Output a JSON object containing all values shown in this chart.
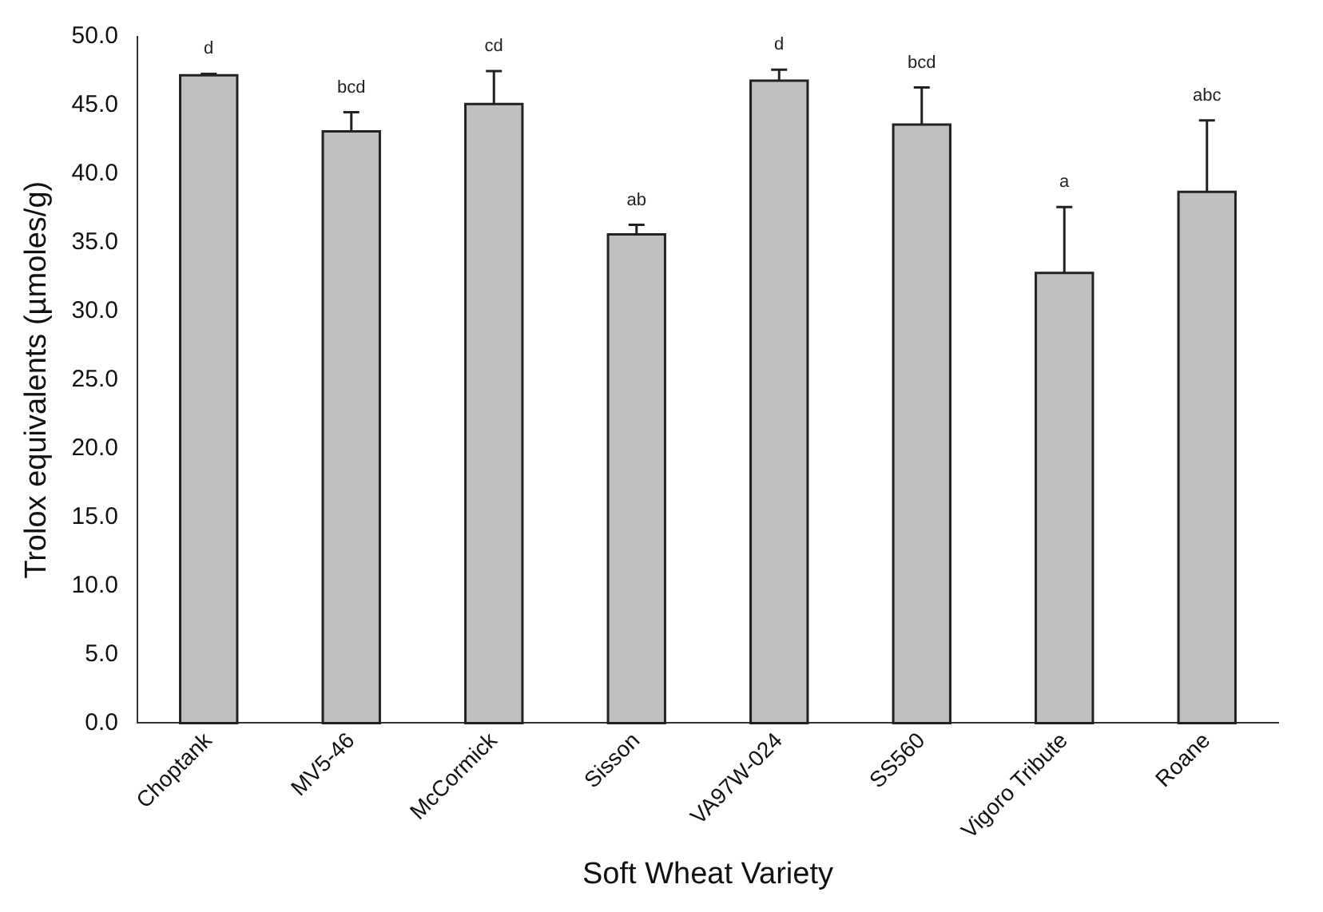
{
  "chart_data": {
    "type": "bar",
    "xlabel": "Soft Wheat Variety",
    "ylabel": "Trolox equivalents (µmoles/g)",
    "categories": [
      "Choptank",
      "MV5-46",
      "McCormick",
      "Sisson",
      "VA97W-024",
      "SS560",
      "Vigoro Tribute",
      "Roane"
    ],
    "values": [
      47.2,
      43.1,
      45.1,
      35.6,
      46.8,
      43.6,
      32.8,
      38.7
    ],
    "errors": [
      [
        47.2,
        47.3
      ],
      [
        43.1,
        44.5
      ],
      [
        45.1,
        47.5
      ],
      [
        35.6,
        36.3
      ],
      [
        46.8,
        47.6
      ],
      [
        43.6,
        46.3
      ],
      [
        32.8,
        37.6
      ],
      [
        38.7,
        43.9
      ]
    ],
    "color": "#c0c0c0",
    "ylim": [
      0,
      50
    ],
    "yticks": [
      {
        "value": 0,
        "label": "0.0"
      },
      {
        "value": 5,
        "label": "5.0"
      },
      {
        "value": 10,
        "label": "10.0"
      },
      {
        "value": 15,
        "label": "15.0"
      },
      {
        "value": 20,
        "label": "20.0"
      },
      {
        "value": 25,
        "label": "25.0"
      },
      {
        "value": 30,
        "label": "30.0"
      },
      {
        "value": 35,
        "label": "35.0"
      },
      {
        "value": 40,
        "label": "40.0"
      },
      {
        "value": 45,
        "label": "45.0"
      },
      {
        "value": 50,
        "label": "50.0"
      }
    ],
    "annotations": [
      "d",
      "bcd",
      "cd",
      "ab",
      "d",
      "bcd",
      "a",
      "abc"
    ],
    "grid": false,
    "legend": false
  }
}
